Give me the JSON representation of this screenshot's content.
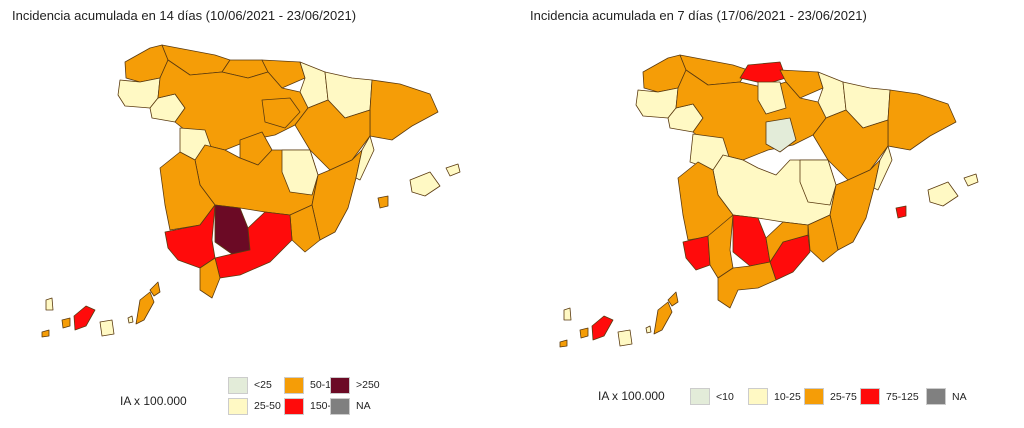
{
  "maps": [
    {
      "title": "Incidencia acumulada en 14 días (10/06/2021 - 23/06/2021)",
      "legend_title": "IA x 100.000",
      "legend": [
        {
          "label": "<25",
          "color": "#e3ecd9"
        },
        {
          "label": "25-50",
          "color": "#fff9c4"
        },
        {
          "label": "50-150",
          "color": "#f59d07"
        },
        {
          "label": "150-250",
          "color": "#ff0b0b"
        },
        {
          "label": ">250",
          "color": "#6b0a25"
        },
        {
          "label": "NA",
          "color": "#808080"
        }
      ],
      "regions": {
        "galicia_north": "50-150",
        "galicia_coast": "25-50",
        "galicia_south": "25-50",
        "asturias": "50-150",
        "cantabria": "50-150",
        "basque": "50-150",
        "navarra": "25-50",
        "aragon_north": "25-50",
        "catalonia": "50-150",
        "castilla_leon": "50-150",
        "castilla_leon_west": "25-50",
        "rioja": "50-150",
        "madrid": "50-150",
        "castilla_mancha": "50-150",
        "cuenca": "25-50",
        "valencia": "50-150",
        "valencia_coast": "25-50",
        "extremadura": "50-150",
        "murcia": "50-150",
        "andalusia_west": "150-250",
        "cordoba": ">250",
        "andalusia_east": "150-250",
        "cadiz": "50-150",
        "balearic": "25-50",
        "ibiza": "50-150",
        "canary_west": "25-50",
        "tenerife": "150-250",
        "gomera": "50-150",
        "gran_canaria": "25-50",
        "fuerteventura": "50-150"
      }
    },
    {
      "title": "Incidencia acumulada en 7 días (17/06/2021 - 23/06/2021)",
      "legend_title": "IA x 100.000",
      "legend": [
        {
          "label": "<10",
          "color": "#e3ecd9"
        },
        {
          "label": "10-25",
          "color": "#fff9c4"
        },
        {
          "label": "25-75",
          "color": "#f59d07"
        },
        {
          "label": "75-125",
          "color": "#ff0b0b"
        },
        {
          "label": "NA",
          "color": "#808080"
        }
      ],
      "regions": {
        "galicia_north": "25-75",
        "galicia_coast": "10-25",
        "galicia_south": "10-25",
        "asturias": "25-75",
        "cantabria": "75-125",
        "basque": "25-75",
        "navarra": "10-25",
        "aragon_north": "10-25",
        "catalonia": "25-75",
        "castilla_leon": "25-75",
        "castilla_leon_west": "10-25",
        "rioja": "25-75",
        "madrid": "<10",
        "castilla_mancha": "10-25",
        "cuenca": "10-25",
        "valencia": "25-75",
        "valencia_coast": "10-25",
        "extremadura": "25-75",
        "murcia": "25-75",
        "andalusia_west": "75-125",
        "cordoba": "75-125",
        "andalusia_east": "75-125",
        "cadiz": "25-75",
        "balearic": "10-25",
        "ibiza": "75-125",
        "canary_west": "10-25",
        "tenerife": "75-125",
        "gomera": "25-75",
        "gran_canaria": "10-25",
        "fuerteventura": "25-75"
      }
    }
  ]
}
